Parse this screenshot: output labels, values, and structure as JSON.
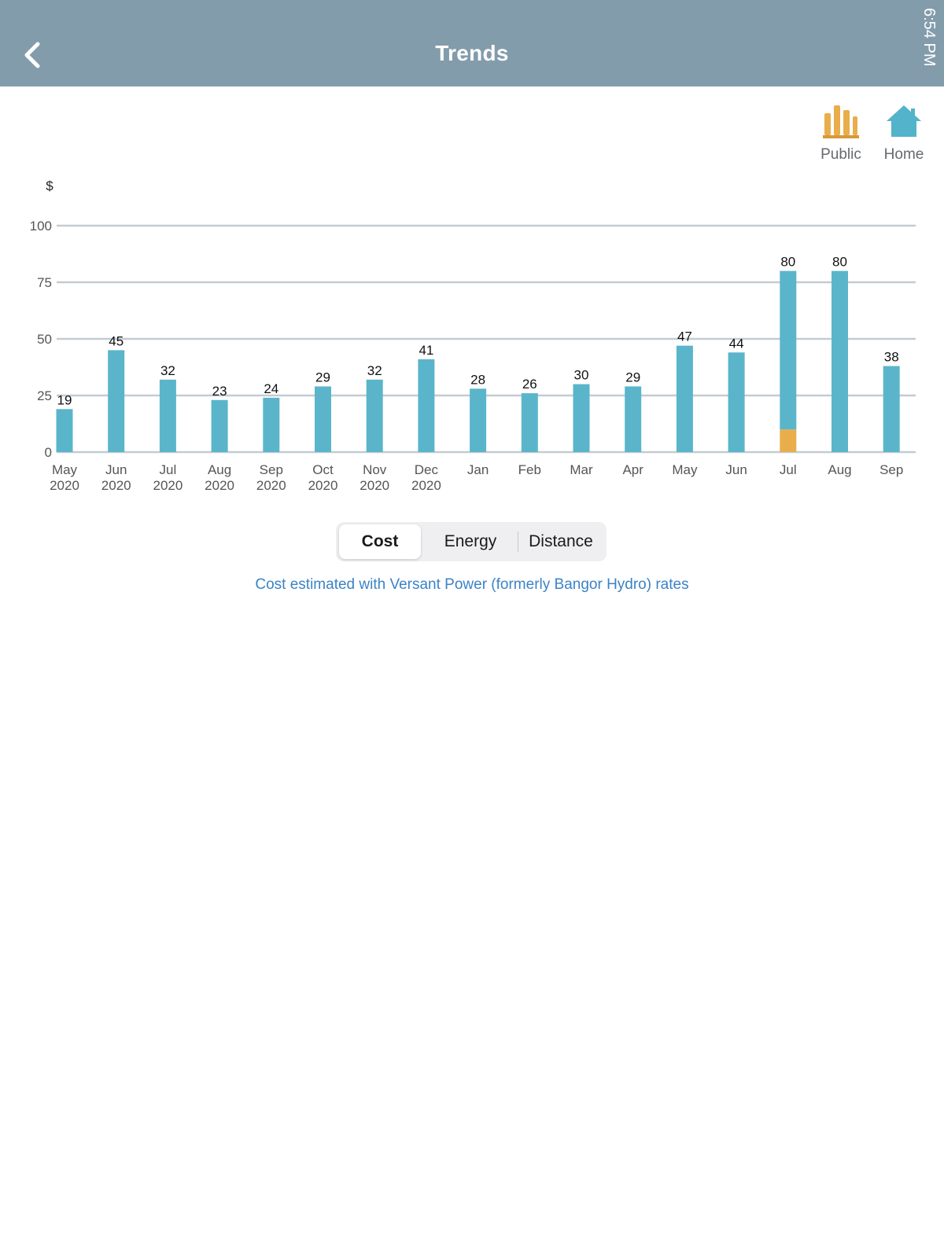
{
  "header": {
    "title": "Trends",
    "status_time": "6:54 PM",
    "back_icon": "chevron-left-icon"
  },
  "filters": {
    "public": {
      "label": "Public",
      "icon": "public-charging-icon",
      "color": "#e9ad4c"
    },
    "home": {
      "label": "Home",
      "icon": "home-icon",
      "color": "#52b3cb"
    }
  },
  "chart_data": {
    "type": "bar",
    "stacked": true,
    "ylabel": "$",
    "ylim": [
      0,
      100
    ],
    "yticks": [
      0,
      25,
      50,
      75,
      100
    ],
    "grid": true,
    "categories": [
      [
        "May",
        "2020"
      ],
      [
        "Jun",
        "2020"
      ],
      [
        "Jul",
        "2020"
      ],
      [
        "Aug",
        "2020"
      ],
      [
        "Sep",
        "2020"
      ],
      [
        "Oct",
        "2020"
      ],
      [
        "Nov",
        "2020"
      ],
      [
        "Dec",
        "2020"
      ],
      [
        "Jan",
        ""
      ],
      [
        "Feb",
        ""
      ],
      [
        "Mar",
        ""
      ],
      [
        "Apr",
        ""
      ],
      [
        "May",
        ""
      ],
      [
        "Jun",
        ""
      ],
      [
        "Jul",
        ""
      ],
      [
        "Aug",
        ""
      ],
      [
        "Sep",
        ""
      ]
    ],
    "series": [
      {
        "color": "#e9ad4c",
        "values": [
          0,
          0,
          0,
          0,
          0,
          0,
          0,
          0,
          0,
          0,
          0,
          0,
          0,
          0,
          10,
          0,
          0
        ]
      },
      {
        "color": "#5ab5cb",
        "values": [
          19,
          45,
          32,
          23,
          24,
          29,
          32,
          41,
          28,
          26,
          30,
          29,
          47,
          44,
          70,
          80,
          38
        ]
      }
    ],
    "totals": [
      19,
      45,
      32,
      23,
      24,
      29,
      32,
      41,
      28,
      26,
      30,
      29,
      47,
      44,
      80,
      80,
      38
    ]
  },
  "segmented_control": {
    "options": [
      "Cost",
      "Energy",
      "Distance"
    ],
    "selected": "Cost"
  },
  "rates_note": "Cost estimated with Versant Power (formerly Bangor Hydro) rates"
}
